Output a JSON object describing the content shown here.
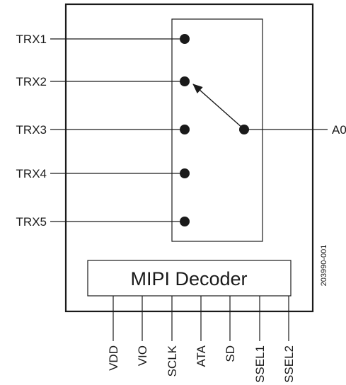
{
  "switch_ports": [
    {
      "label": "TRX1"
    },
    {
      "label": "TRX2"
    },
    {
      "label": "TRX3"
    },
    {
      "label": "TRX4"
    },
    {
      "label": "TRX5"
    }
  ],
  "antenna_port": {
    "label": "A0"
  },
  "selected_port": "TRX2",
  "decoder": {
    "label": "MIPI Decoder"
  },
  "control_pins": [
    {
      "label": "VDD"
    },
    {
      "label": "VIO"
    },
    {
      "label": "SCLK"
    },
    {
      "label": "ATA"
    },
    {
      "label": "SD"
    },
    {
      "label": "SSEL1"
    },
    {
      "label": "SSEL2"
    }
  ],
  "figure_id": "203990-001",
  "colors": {
    "line": "#1a1a1a",
    "background": "#ffffff"
  }
}
